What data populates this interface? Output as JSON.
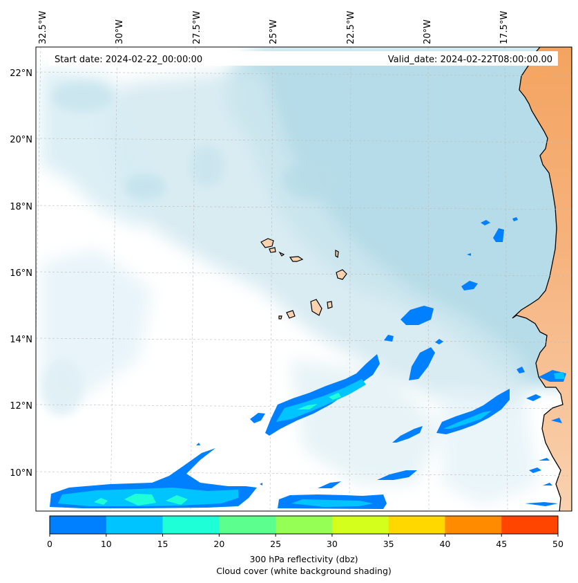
{
  "header": {
    "start_date": "Start date: 2024-02-22_00:00:00",
    "valid_date": "Valid_date: 2024-02-22T08:00:00.00"
  },
  "axes": {
    "lon_labels": [
      "32.5°W",
      "30°W",
      "27.5°W",
      "25°W",
      "22.5°W",
      "20°W",
      "17.5°W"
    ],
    "lat_labels": [
      "22°N",
      "20°N",
      "18°N",
      "16°N",
      "14°N",
      "12°N",
      "10°N"
    ]
  },
  "colorbar": {
    "ticks": [
      "0",
      "10",
      "15",
      "20",
      "25",
      "30",
      "35",
      "40",
      "45",
      "50"
    ],
    "colors": [
      "#0080ff",
      "#00c4ff",
      "#1effd8",
      "#5cff8e",
      "#96ff55",
      "#d4ff1c",
      "#ffd800",
      "#ff8c00",
      "#ff4500"
    ],
    "title_line1": "300 hPa reflectivity (dbz)",
    "title_line2": "Cloud cover (white background shading)"
  },
  "colors": {
    "land_north": "#f4a460",
    "land_south": "#f8cba4",
    "cloud_dense": "#add8e6",
    "reflectivity_low": "#0080ff",
    "reflectivity_mid": "#00c4ff",
    "reflectivity_high": "#1effd8"
  }
}
